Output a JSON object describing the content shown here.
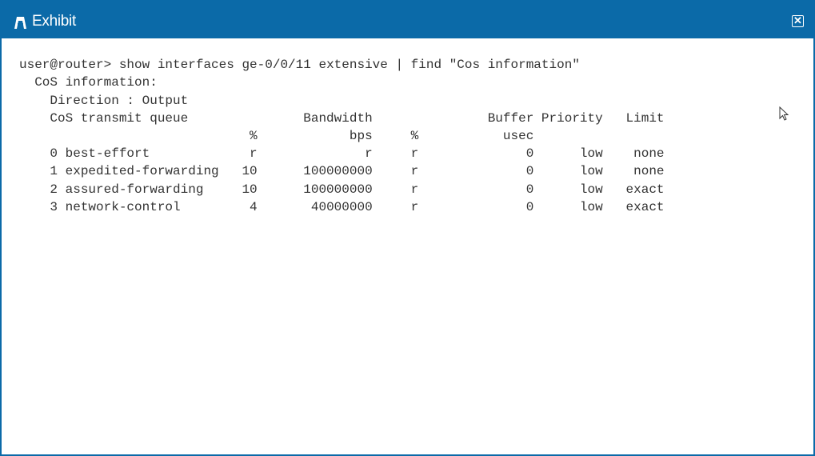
{
  "window": {
    "title": "Exhibit",
    "close_label": "✕",
    "accent": "#0b6aa8"
  },
  "terminal": {
    "command": "user@router> show interfaces ge-0/0/11 extensive | find \"Cos information\"",
    "section": "CoS information:",
    "direction": "Direction : Output",
    "headers": {
      "queue": "CoS transmit queue",
      "bandwidth": "Bandwidth",
      "buffer": "Buffer",
      "priority": "Priority",
      "limit": "Limit"
    },
    "units": {
      "pct": "%",
      "bps": "bps",
      "pct2": "%",
      "usec": "usec"
    },
    "rows": [
      {
        "queue": "0 best-effort",
        "pct": "r",
        "bps": "r",
        "pct2": "r",
        "buffer": "0",
        "priority": "low",
        "limit": "none"
      },
      {
        "queue": "1 expedited-forwarding",
        "pct": "10",
        "bps": "100000000",
        "pct2": "r",
        "buffer": "0",
        "priority": "low",
        "limit": "none"
      },
      {
        "queue": "2 assured-forwarding",
        "pct": "10",
        "bps": "100000000",
        "pct2": "r",
        "buffer": "0",
        "priority": "low",
        "limit": "exact"
      },
      {
        "queue": "3 network-control",
        "pct": "4",
        "bps": "40000000",
        "pct2": "r",
        "buffer": "0",
        "priority": "low",
        "limit": "exact"
      }
    ]
  }
}
